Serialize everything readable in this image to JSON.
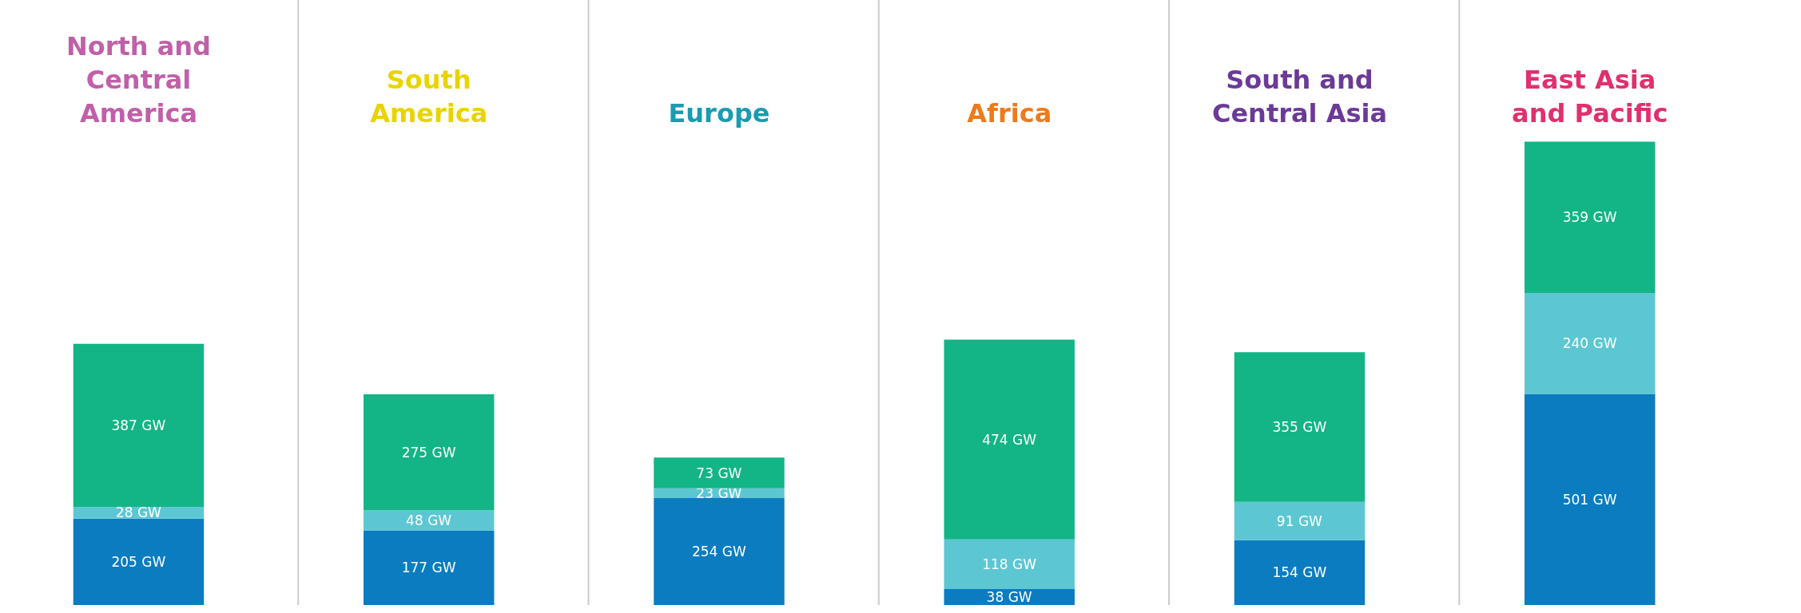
{
  "chart_data": {
    "type": "bar",
    "categories": [
      "North and Central America",
      "South America",
      "Europe",
      "Africa",
      "South and Central Asia",
      "East Asia and Pacific"
    ],
    "stacked": true,
    "tick_labels": "x",
    "grid": false,
    "series": [
      {
        "color": "#0b7cbf",
        "values": [
          205,
          177,
          254,
          38,
          154,
          501
        ],
        "value_labels": [
          "205 GW",
          "177 GW",
          "254 GW",
          "38 GW",
          "154 GW",
          "501 GW"
        ]
      },
      {
        "color": "#5cc7d3",
        "values": [
          28,
          48,
          23,
          118,
          91,
          240
        ],
        "value_labels": [
          "28 GW",
          "48 GW",
          "23 GW",
          "118 GW",
          "91 GW",
          "240 GW"
        ]
      },
      {
        "color": "#13b486",
        "values": [
          387,
          275,
          73,
          474,
          355,
          359
        ],
        "value_labels": [
          "387 GW",
          "275 GW",
          "73 GW",
          "474 GW",
          "355 GW",
          "359 GW"
        ]
      }
    ]
  }
}
